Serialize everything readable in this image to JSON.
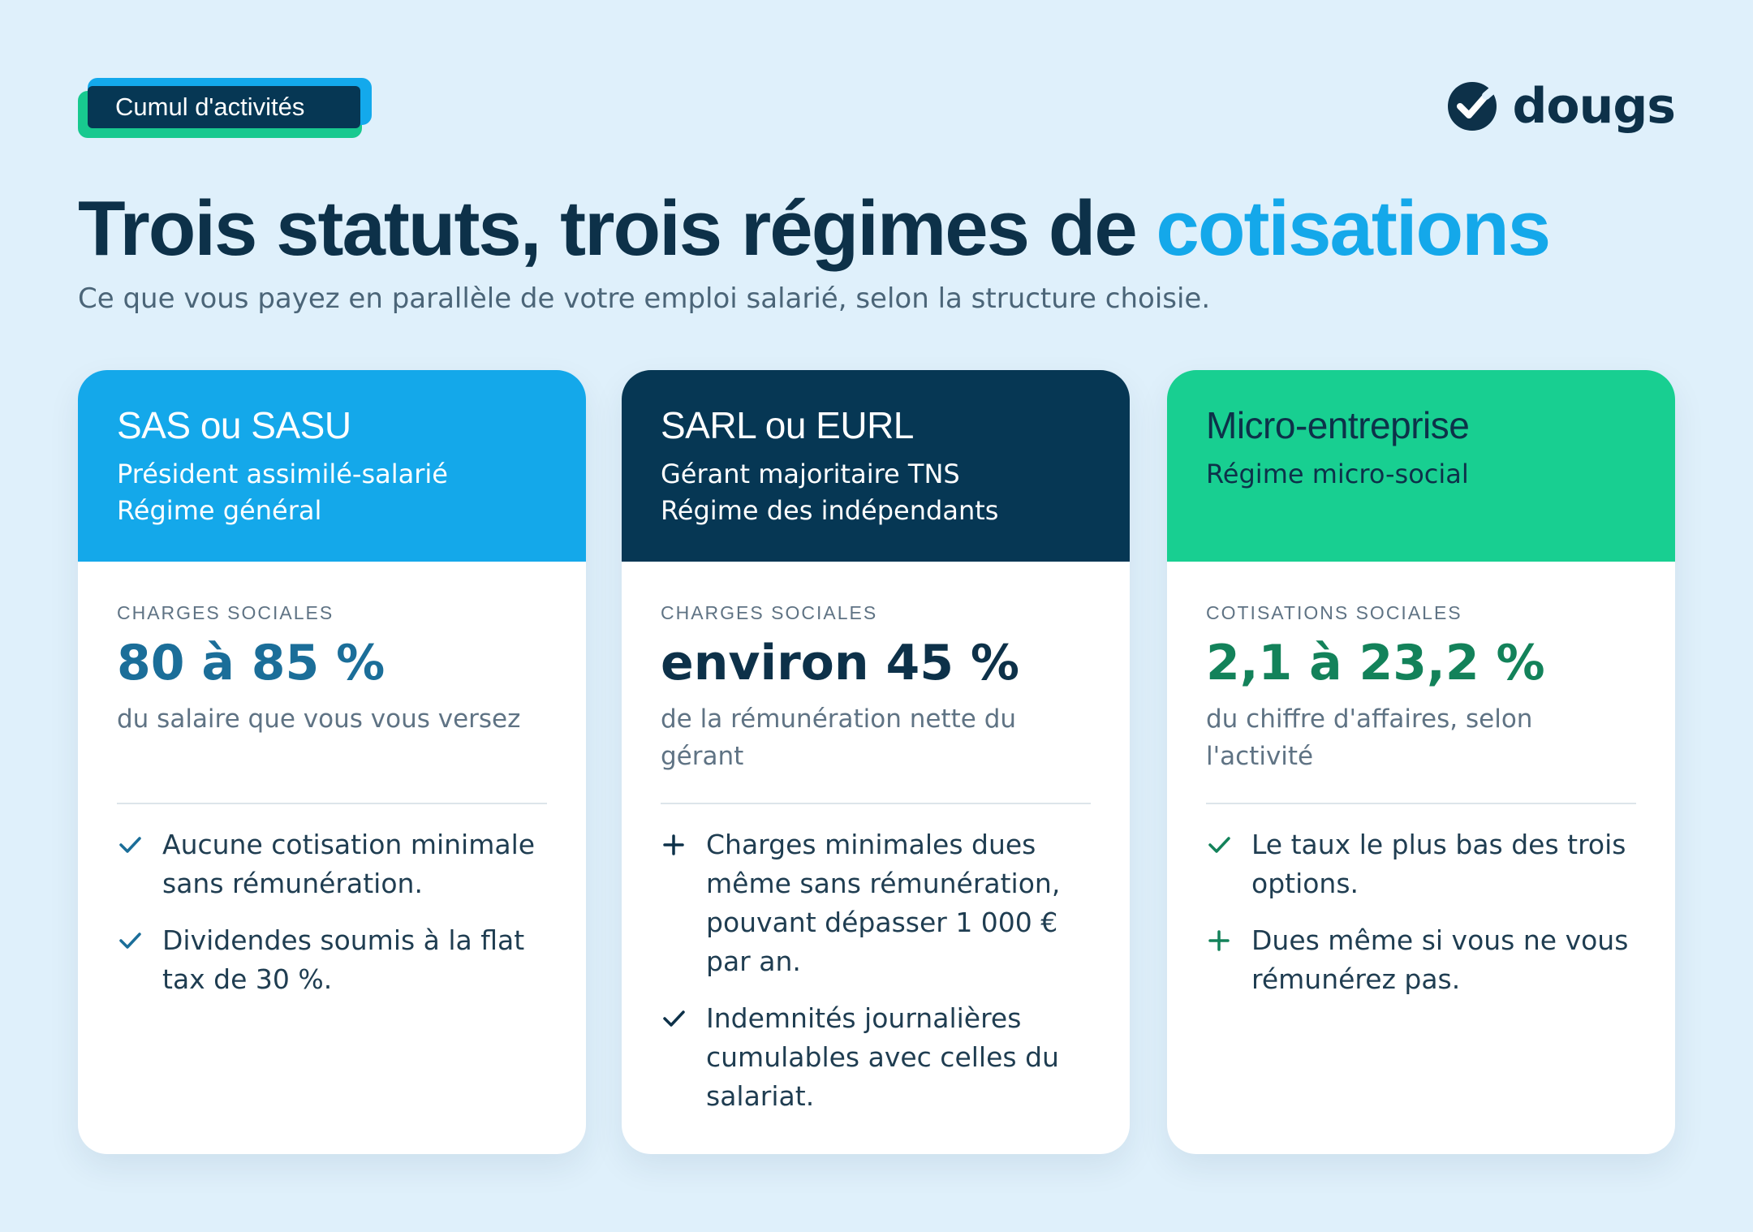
{
  "tag": {
    "label": "Cumul d'activités"
  },
  "brand": {
    "name": "dougs"
  },
  "header": {
    "title_main": "Trois statuts, trois régimes de ",
    "title_accent": "cotisations",
    "subtitle": "Ce que vous payez en parallèle de votre emploi salarié, selon la structure choisie."
  },
  "colors": {
    "background": "#dff0fb",
    "navy": "#063754",
    "blue": "#14a8ea",
    "green": "#18cf91",
    "value_blue": "#1b6e99",
    "value_green": "#13825a"
  },
  "cards": [
    {
      "title": "SAS ou SASU",
      "sub1": "Président assimilé-salarié",
      "sub2": "Régime général",
      "metric_label": "CHARGES SOCIALES",
      "metric_value": "80 à 85 %",
      "metric_desc": "du salaire que vous vous versez",
      "points": [
        {
          "icon": "check-icon",
          "text": "Aucune cotisation minimale sans rémunération."
        },
        {
          "icon": "check-icon",
          "text": "Dividendes soumis à la flat tax de 30 %."
        }
      ]
    },
    {
      "title": "SARL ou EURL",
      "sub1": "Gérant majoritaire TNS",
      "sub2": "Régime des indépendants",
      "metric_label": "CHARGES SOCIALES",
      "metric_value": "environ 45 %",
      "metric_desc": "de la rémunération nette du gérant",
      "points": [
        {
          "icon": "plus-icon",
          "text": "Charges minimales dues même sans rémunération, pouvant dépasser 1 000 € par an."
        },
        {
          "icon": "check-icon",
          "text": "Indemnités journalières cumulables avec celles du salariat."
        }
      ]
    },
    {
      "title": "Micro-entreprise",
      "sub1": "Régime micro-social",
      "sub2": "",
      "metric_label": "COTISATIONS SOCIALES",
      "metric_value": "2,1 à 23,2 %",
      "metric_desc": "du chiffre d'affaires, selon l'activité",
      "points": [
        {
          "icon": "check-icon",
          "text": "Le taux le plus bas des trois options."
        },
        {
          "icon": "plus-icon",
          "text": "Dues même si vous ne vous rémunérez pas."
        }
      ]
    }
  ]
}
